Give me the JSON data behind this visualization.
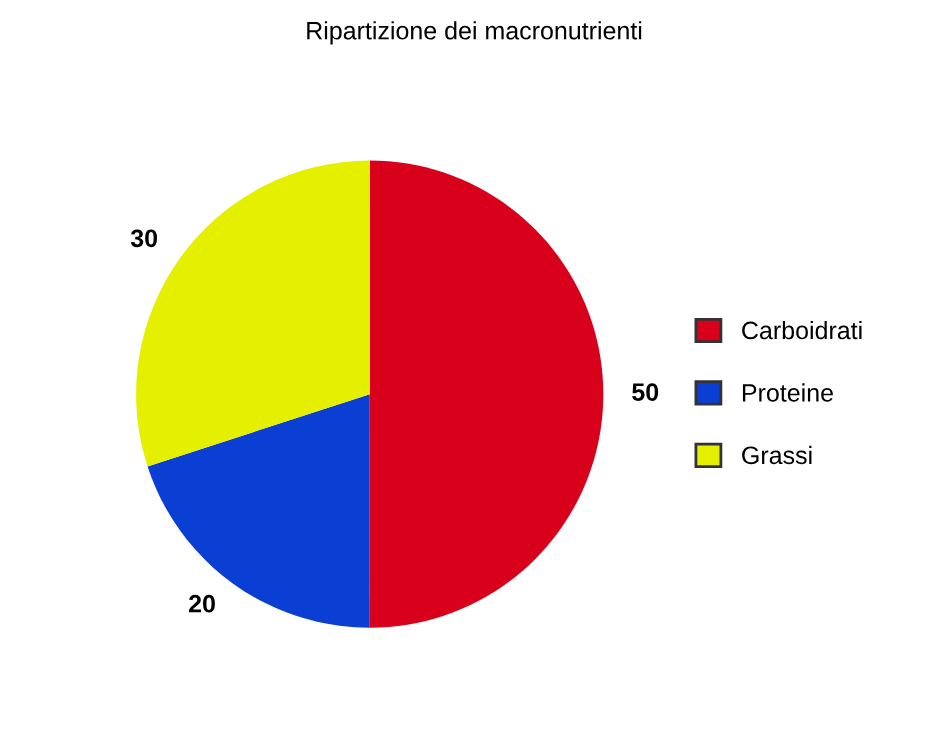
{
  "chart_data": {
    "type": "pie",
    "title": "Ripartizione dei macronutrienti",
    "categories": [
      "Carboidrati",
      "Proteine",
      "Grassi"
    ],
    "values": [
      50,
      20,
      30
    ],
    "colors": [
      "#d9001c",
      "#0b3fd4",
      "#e4f000"
    ],
    "data_labels": true,
    "legend": "right"
  }
}
